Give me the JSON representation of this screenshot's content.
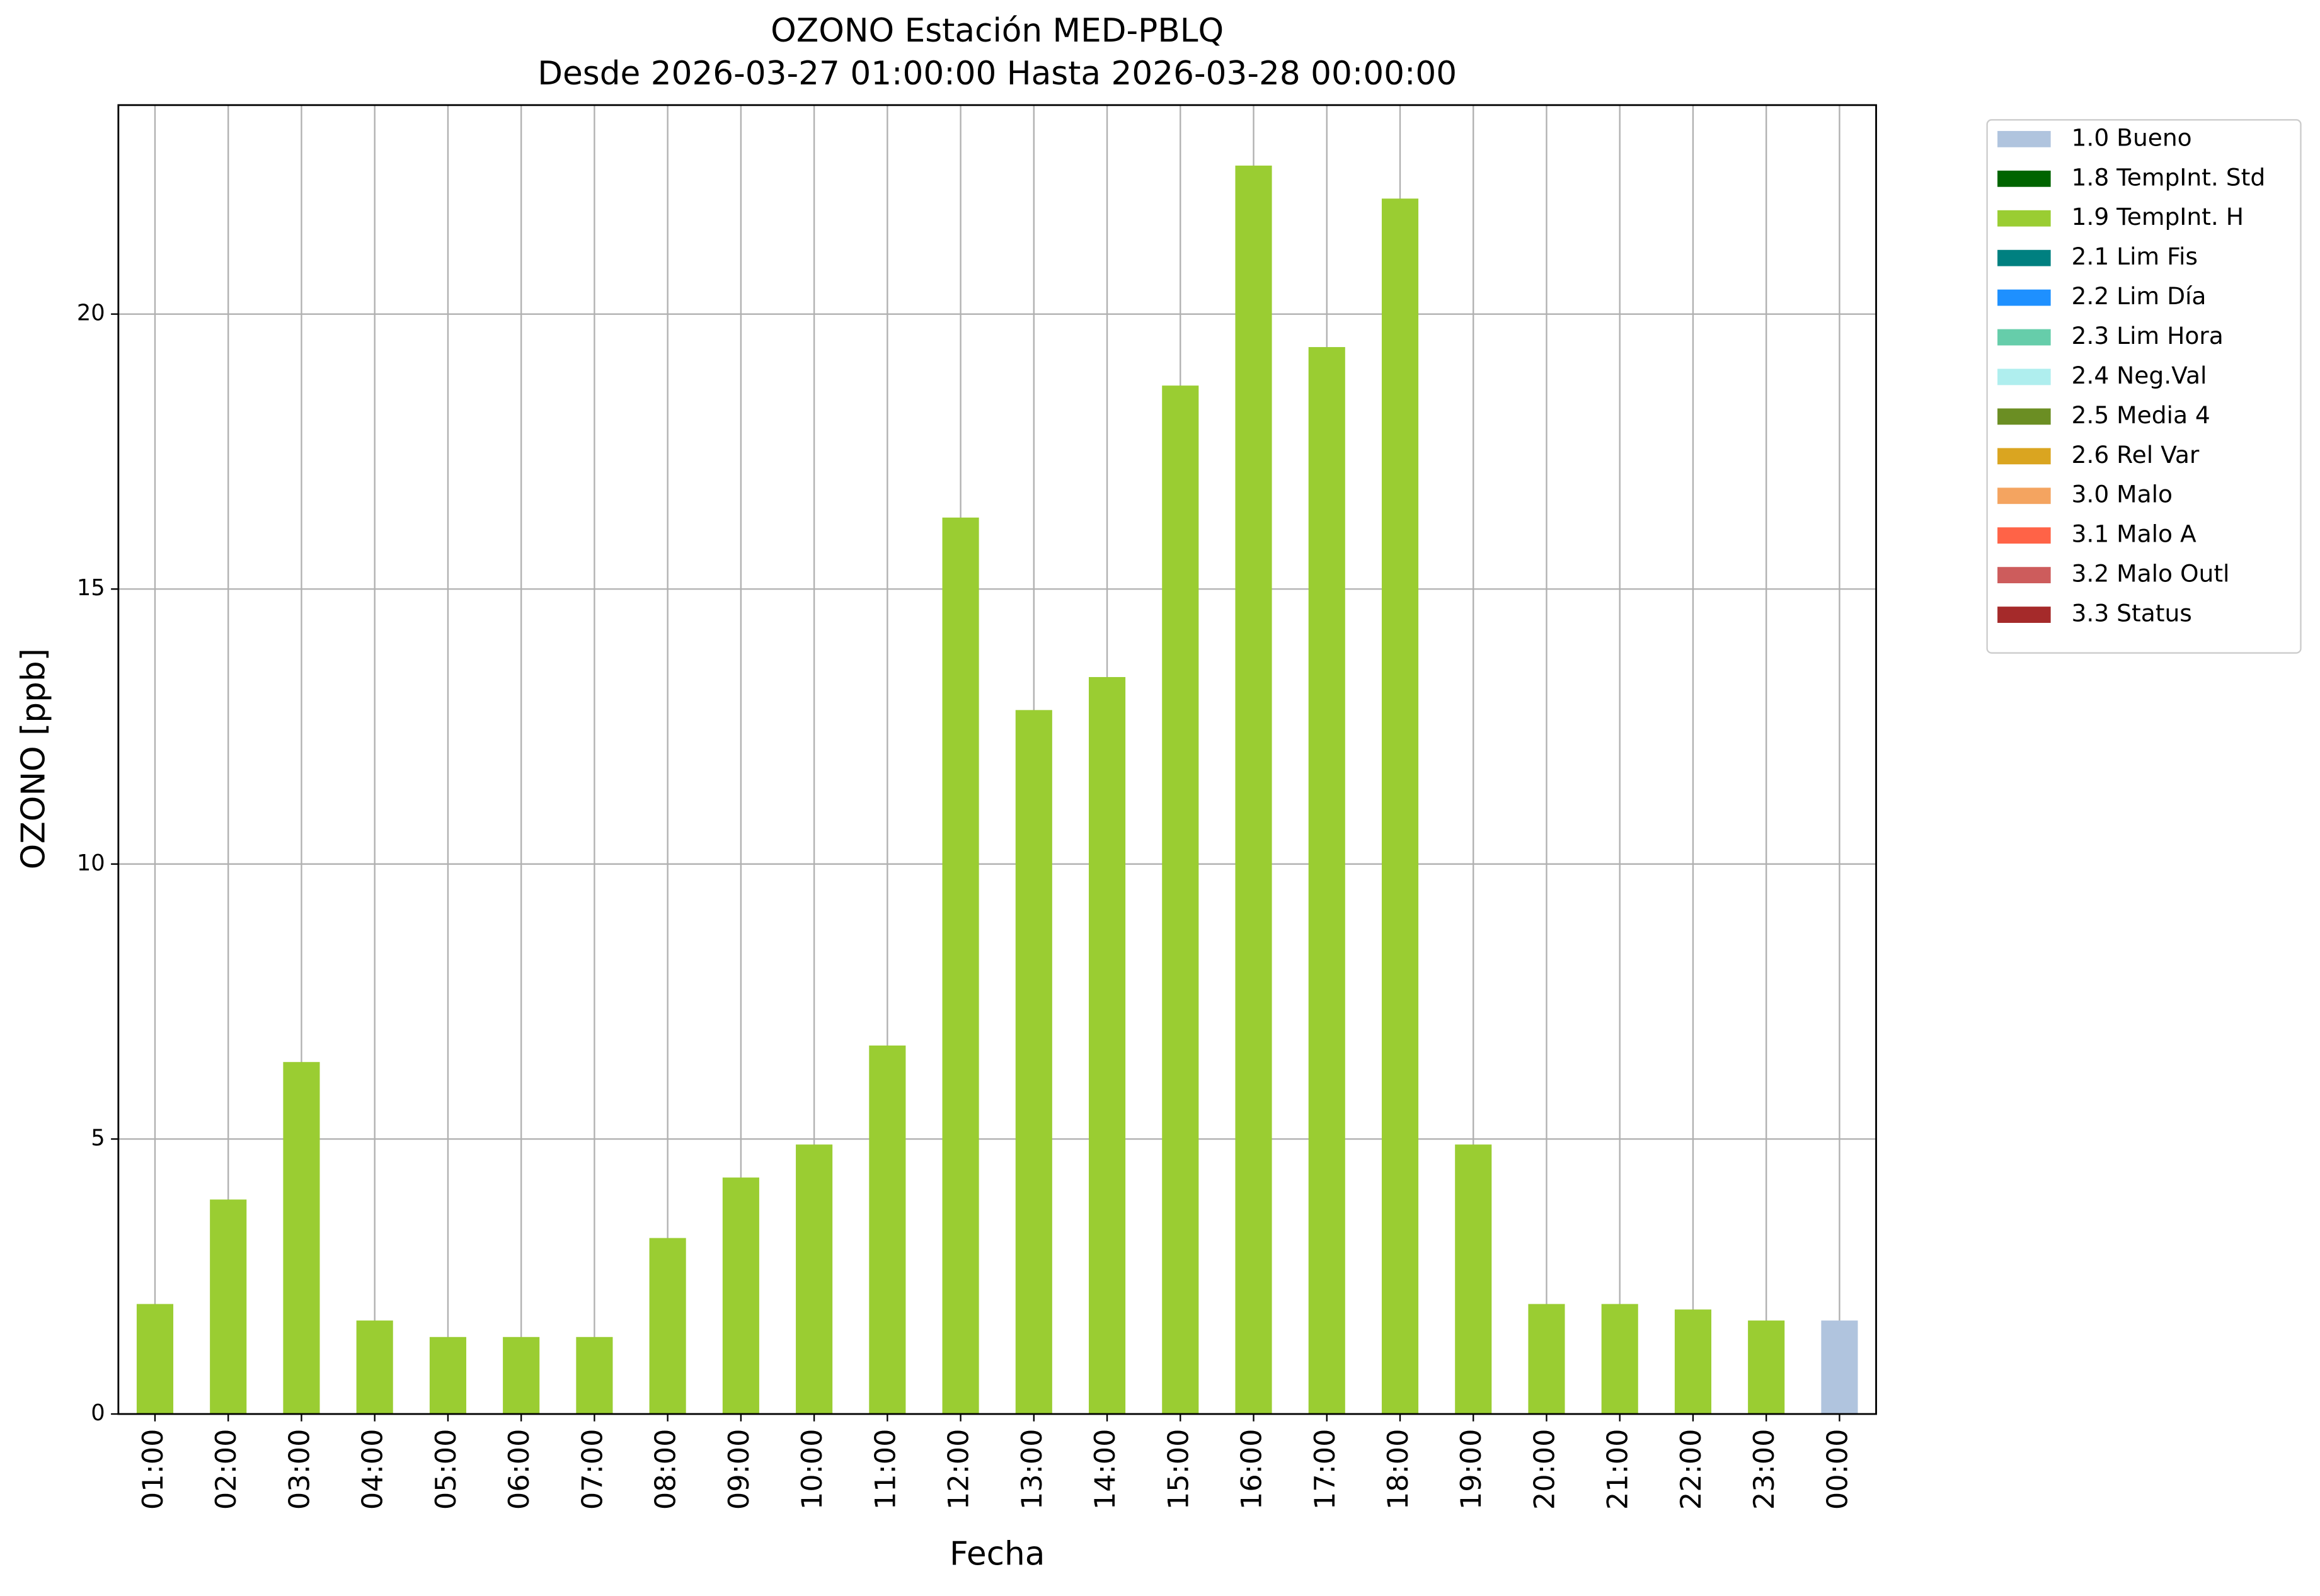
{
  "chart_data": {
    "type": "bar",
    "stacked": true,
    "title": "OZONO Estación MED-PBLQ",
    "subtitle": "Desde 2026-03-27 01:00:00 Hasta 2026-03-28 00:00:00",
    "x_label": "Fecha",
    "y_label": "OZONO [ppb]",
    "categories": [
      "01:00",
      "02:00",
      "03:00",
      "04:00",
      "05:00",
      "06:00",
      "07:00",
      "08:00",
      "09:00",
      "10:00",
      "11:00",
      "12:00",
      "13:00",
      "14:00",
      "15:00",
      "16:00",
      "17:00",
      "18:00",
      "19:00",
      "20:00",
      "21:00",
      "22:00",
      "23:00",
      "00:00"
    ],
    "series": [
      {
        "name": "1.0 Bueno",
        "color": "#b0c4de",
        "values": [
          null,
          null,
          null,
          null,
          null,
          null,
          null,
          null,
          null,
          null,
          null,
          null,
          null,
          null,
          null,
          null,
          null,
          null,
          null,
          null,
          null,
          null,
          null,
          1.7
        ]
      },
      {
        "name": "1.8 TempInt. Std",
        "color": "#006400",
        "values": [
          null,
          null,
          null,
          null,
          null,
          null,
          null,
          null,
          null,
          null,
          null,
          null,
          null,
          null,
          null,
          null,
          null,
          null,
          null,
          null,
          null,
          null,
          null,
          null
        ]
      },
      {
        "name": "1.9 TempInt. H",
        "color": "#9acd32",
        "values": [
          2.0,
          3.9,
          6.4,
          1.7,
          1.4,
          1.4,
          1.4,
          3.2,
          4.3,
          4.9,
          6.7,
          16.3,
          12.8,
          13.4,
          18.7,
          22.7,
          19.4,
          22.1,
          4.9,
          2.0,
          2.0,
          1.9,
          1.7,
          null
        ]
      },
      {
        "name": "2.1 Lim Fis",
        "color": "#008080",
        "values": [
          null,
          null,
          null,
          null,
          null,
          null,
          null,
          null,
          null,
          null,
          null,
          null,
          null,
          null,
          null,
          null,
          null,
          null,
          null,
          null,
          null,
          null,
          null,
          null
        ]
      },
      {
        "name": "2.2 Lim Día",
        "color": "#1e90ff",
        "values": [
          null,
          null,
          null,
          null,
          null,
          null,
          null,
          null,
          null,
          null,
          null,
          null,
          null,
          null,
          null,
          null,
          null,
          null,
          null,
          null,
          null,
          null,
          null,
          null
        ]
      },
      {
        "name": "2.3 Lim Hora",
        "color": "#66cdaa",
        "values": [
          null,
          null,
          null,
          null,
          null,
          null,
          null,
          null,
          null,
          null,
          null,
          null,
          null,
          null,
          null,
          null,
          null,
          null,
          null,
          null,
          null,
          null,
          null,
          null
        ]
      },
      {
        "name": "2.4 Neg.Val",
        "color": "#afeeee",
        "values": [
          null,
          null,
          null,
          null,
          null,
          null,
          null,
          null,
          null,
          null,
          null,
          null,
          null,
          null,
          null,
          null,
          null,
          null,
          null,
          null,
          null,
          null,
          null,
          null
        ]
      },
      {
        "name": "2.5 Media 4",
        "color": "#6b8e23",
        "values": [
          null,
          null,
          null,
          null,
          null,
          null,
          null,
          null,
          null,
          null,
          null,
          null,
          null,
          null,
          null,
          null,
          null,
          null,
          null,
          null,
          null,
          null,
          null,
          null
        ]
      },
      {
        "name": "2.6 Rel Var",
        "color": "#daa520",
        "values": [
          null,
          null,
          null,
          null,
          null,
          null,
          null,
          null,
          null,
          null,
          null,
          null,
          null,
          null,
          null,
          null,
          null,
          null,
          null,
          null,
          null,
          null,
          null,
          null
        ]
      },
      {
        "name": "3.0 Malo",
        "color": "#f4a460",
        "values": [
          null,
          null,
          null,
          null,
          null,
          null,
          null,
          null,
          null,
          null,
          null,
          null,
          null,
          null,
          null,
          null,
          null,
          null,
          null,
          null,
          null,
          null,
          null,
          null
        ]
      },
      {
        "name": "3.1 Malo A",
        "color": "#ff6347",
        "values": [
          null,
          null,
          null,
          null,
          null,
          null,
          null,
          null,
          null,
          null,
          null,
          null,
          null,
          null,
          null,
          null,
          null,
          null,
          null,
          null,
          null,
          null,
          null,
          null
        ]
      },
      {
        "name": "3.2 Malo Outl",
        "color": "#cd5c5c",
        "values": [
          null,
          null,
          null,
          null,
          null,
          null,
          null,
          null,
          null,
          null,
          null,
          null,
          null,
          null,
          null,
          null,
          null,
          null,
          null,
          null,
          null,
          null,
          null,
          null
        ]
      },
      {
        "name": "3.3 Status",
        "color": "#a52a2a",
        "values": [
          null,
          null,
          null,
          null,
          null,
          null,
          null,
          null,
          null,
          null,
          null,
          null,
          null,
          null,
          null,
          null,
          null,
          null,
          null,
          null,
          null,
          null,
          null,
          null
        ]
      }
    ],
    "ylim": [
      0,
      23.8
    ],
    "yticks": [
      0,
      5,
      10,
      15,
      20
    ],
    "grid": true,
    "legend": "outside-right"
  }
}
